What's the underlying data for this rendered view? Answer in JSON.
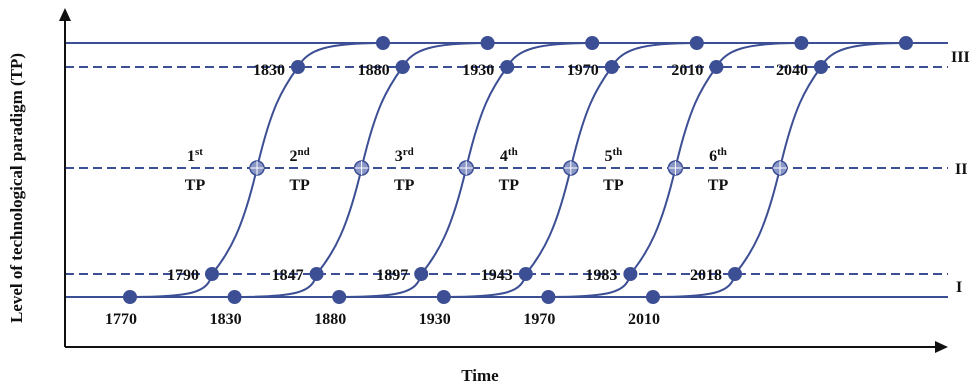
{
  "axes": {
    "y_title": "Level of technological paradigm (TP)",
    "x_title": "Time"
  },
  "levels": [
    "I",
    "II",
    "III"
  ],
  "colors": {
    "curve": "#3d4f94",
    "point": "#3d4f94",
    "midpoint": "#8a97c6",
    "dashed_low": "#3d4f94",
    "dashed_mid_light": "#b9bfd6",
    "axis": "#111111"
  },
  "paradigms": [
    {
      "num": "1",
      "suffix": "st",
      "tp": "TP",
      "start": "1770",
      "low": "1790",
      "high": "1830"
    },
    {
      "num": "2",
      "suffix": "nd",
      "tp": "TP",
      "start": "1830",
      "low": "1847",
      "high": "1880"
    },
    {
      "num": "3",
      "suffix": "rd",
      "tp": "TP",
      "start": "1880",
      "low": "1897",
      "high": "1930"
    },
    {
      "num": "4",
      "suffix": "th",
      "tp": "TP",
      "start": "1930",
      "low": "1943",
      "high": "1970"
    },
    {
      "num": "5",
      "suffix": "th",
      "tp": "TP",
      "start": "1970",
      "low": "1983",
      "high": "2010"
    },
    {
      "num": "6",
      "suffix": "th",
      "tp": "TP",
      "start": "2010",
      "low": "2018",
      "high": "2040"
    }
  ]
}
